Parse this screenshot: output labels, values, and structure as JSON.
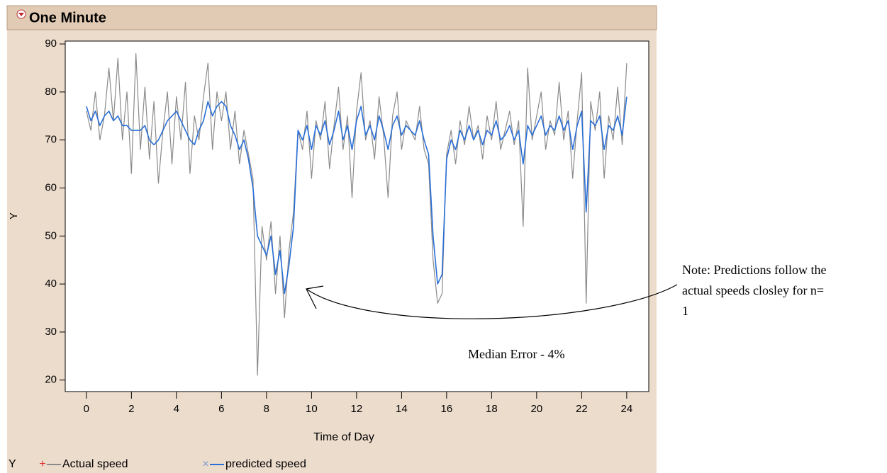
{
  "chart_data": {
    "type": "line",
    "title": "One Minute",
    "x_label": "Time of Day",
    "y_label": "Y",
    "legend_title": "Y",
    "annotation": "Median Error - 4%",
    "note_lines": [
      "Note: Predictions follow the",
      "actual speeds closley for n=",
      "1"
    ],
    "xlim": [
      -0.94,
      24.98
    ],
    "ylim": [
      17.6,
      90.6
    ],
    "xticks": [
      0,
      2,
      4,
      6,
      8,
      10,
      12,
      14,
      16,
      18,
      20,
      22,
      24
    ],
    "yticks": [
      20,
      30,
      40,
      50,
      60,
      70,
      80,
      90
    ],
    "grid": false,
    "x": [
      0,
      0.2,
      0.4,
      0.6,
      0.8,
      1,
      1.2,
      1.4,
      1.6,
      1.8,
      2,
      2.2,
      2.4,
      2.6,
      2.8,
      3,
      3.2,
      3.4,
      3.6,
      3.8,
      4,
      4.2,
      4.4,
      4.6,
      4.8,
      5,
      5.2,
      5.4,
      5.6,
      5.8,
      6,
      6.2,
      6.4,
      6.6,
      6.8,
      7,
      7.2,
      7.4,
      7.6,
      7.8,
      8,
      8.2,
      8.4,
      8.6,
      8.8,
      9,
      9.2,
      9.4,
      9.6,
      9.8,
      10,
      10.2,
      10.4,
      10.6,
      10.8,
      11,
      11.2,
      11.4,
      11.6,
      11.8,
      12,
      12.2,
      12.4,
      12.6,
      12.8,
      13,
      13.2,
      13.4,
      13.6,
      13.8,
      14,
      14.2,
      14.4,
      14.6,
      14.8,
      15,
      15.2,
      15.4,
      15.6,
      15.8,
      16,
      16.2,
      16.4,
      16.6,
      16.8,
      17,
      17.2,
      17.4,
      17.6,
      17.8,
      18,
      18.2,
      18.4,
      18.6,
      18.8,
      19,
      19.2,
      19.4,
      19.6,
      19.8,
      20,
      20.2,
      20.4,
      20.6,
      20.8,
      21,
      21.2,
      21.4,
      21.6,
      21.8,
      22,
      22.2,
      22.4,
      22.6,
      22.8,
      23,
      23.2,
      23.4,
      23.6,
      23.8,
      24
    ],
    "series": [
      {
        "name": "Actual speed",
        "color": "#8a8a8a",
        "values": [
          76,
          72,
          80,
          70,
          75,
          85,
          74,
          87,
          70,
          80,
          63,
          88,
          68,
          81,
          66,
          78,
          61,
          72,
          80,
          65,
          79,
          70,
          82,
          63,
          75,
          70,
          79,
          86,
          68,
          80,
          74,
          80,
          68,
          76,
          65,
          72,
          67,
          62,
          21,
          52,
          45,
          53,
          38,
          50,
          33,
          47,
          55,
          72,
          68,
          76,
          62,
          74,
          70,
          78,
          64,
          73,
          81,
          68,
          75,
          58,
          76,
          84,
          70,
          74,
          66,
          79,
          71,
          58,
          75,
          80,
          68,
          74,
          72,
          70,
          77,
          68,
          65,
          45,
          36,
          38,
          67,
          72,
          65,
          74,
          69,
          77,
          70,
          73,
          66,
          75,
          70,
          78,
          68,
          72,
          76,
          69,
          74,
          52,
          85,
          70,
          75,
          80,
          68,
          74,
          71,
          82,
          70,
          76,
          62,
          74,
          84,
          36,
          78,
          72,
          80,
          62,
          75,
          70,
          81,
          69,
          86
        ]
      },
      {
        "name": "predicted speed",
        "color": "#2a6fd6",
        "values": [
          77,
          74,
          76,
          73,
          75,
          76,
          74,
          75,
          73,
          73,
          72,
          72,
          72,
          73,
          70,
          69,
          70,
          72,
          74,
          75,
          76,
          74,
          72,
          70,
          69,
          72,
          74,
          78,
          75,
          77,
          78,
          77,
          73,
          71,
          68,
          70,
          66,
          60,
          50,
          48,
          46,
          50,
          42,
          47,
          38,
          44,
          52,
          72,
          70,
          73,
          68,
          73,
          71,
          74,
          69,
          72,
          76,
          70,
          73,
          68,
          74,
          77,
          71,
          73,
          70,
          75,
          72,
          68,
          73,
          75,
          71,
          73,
          72,
          71,
          74,
          70,
          67,
          50,
          40,
          42,
          66,
          70,
          68,
          72,
          70,
          73,
          70,
          72,
          69,
          72,
          71,
          74,
          70,
          71,
          73,
          70,
          72,
          65,
          73,
          71,
          73,
          75,
          71,
          73,
          72,
          75,
          72,
          74,
          68,
          73,
          76,
          55,
          74,
          73,
          75,
          68,
          73,
          72,
          75,
          71,
          79
        ]
      }
    ]
  }
}
